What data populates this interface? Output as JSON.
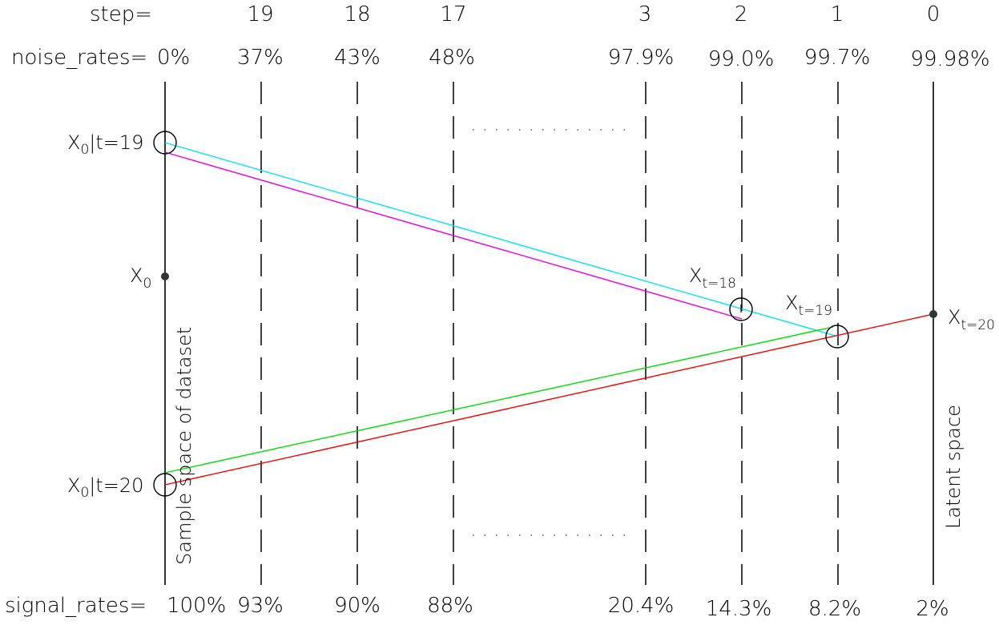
{
  "header": {
    "step_label": "step=",
    "noise_label": "noise_rates=",
    "signal_label": "signal_rates="
  },
  "columns": [
    {
      "step": "",
      "noise": "0%",
      "signal": "100%"
    },
    {
      "step": "19",
      "noise": "37%",
      "signal": "93%"
    },
    {
      "step": "18",
      "noise": "43%",
      "signal": "90%"
    },
    {
      "step": "17",
      "noise": "48%",
      "signal": "88%"
    },
    {
      "step": "3",
      "noise": "97.9%",
      "signal": "20.4%"
    },
    {
      "step": "2",
      "noise": "99.0%",
      "signal": "14.3%"
    },
    {
      "step": "1",
      "noise": "99.7%",
      "signal": "8.2%"
    },
    {
      "step": "0",
      "noise": "99.98%",
      "signal": "2%"
    }
  ],
  "labels": {
    "x0_t19": {
      "main": "X",
      "sub": "0",
      "rest": "|t=19"
    },
    "x0": {
      "main": "X",
      "sub": "0"
    },
    "x0_t20": {
      "main": "X",
      "sub": "0",
      "rest": "|t=20"
    },
    "xt18": {
      "main": "X",
      "sub": "t=18"
    },
    "xt19": {
      "main": "X",
      "sub": "t=19"
    },
    "xt20": {
      "main": "X",
      "sub": "t=20"
    },
    "sample_space": "Sample space of dataset",
    "latent_space": "Latent space"
  },
  "colors": {
    "axis": "#000000",
    "cyan": "#00e5ee",
    "magenta": "#e600e6",
    "green": "#00dd00",
    "red": "#ee0000"
  }
}
